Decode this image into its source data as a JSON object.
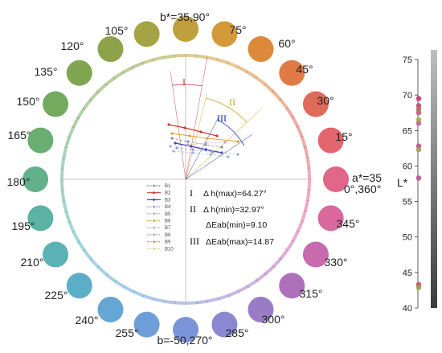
{
  "hue_labels": [
    {
      "text": "b*=35,90°",
      "angle": 90
    },
    {
      "text": "75°",
      "angle": 75
    },
    {
      "text": "60°",
      "angle": 60
    },
    {
      "text": "45°",
      "angle": 45
    },
    {
      "text": "30°",
      "angle": 30
    },
    {
      "text": "15°",
      "angle": 15
    },
    {
      "text": "a*=35",
      "angle": 0
    },
    {
      "text": "0°,360°",
      "angle": 0
    },
    {
      "text": "345°",
      "angle": 345
    },
    {
      "text": "330°",
      "angle": 330
    },
    {
      "text": "315°",
      "angle": 315
    },
    {
      "text": "300°",
      "angle": 300
    },
    {
      "text": "285°",
      "angle": 285
    },
    {
      "text": "b=-50,270°",
      "angle": 270
    },
    {
      "text": "255°",
      "angle": 255
    },
    {
      "text": "240°",
      "angle": 240
    },
    {
      "text": "225°",
      "angle": 225
    },
    {
      "text": "210°",
      "angle": 210
    },
    {
      "text": "195°",
      "angle": 195
    },
    {
      "text": "180°",
      "angle": 180
    },
    {
      "text": "165°",
      "angle": 165
    },
    {
      "text": "150°",
      "angle": 150
    },
    {
      "text": "135°",
      "angle": 135
    },
    {
      "text": "120°",
      "angle": 120
    },
    {
      "text": "105°",
      "angle": 105
    }
  ],
  "circle_colors": {
    "90": "#c0a03c",
    "75": "#d49a3a",
    "60": "#dc8a3a",
    "45": "#e07a45",
    "30": "#e06a5a",
    "15": "#e2656f",
    "0": "#e0668a",
    "345": "#d8689e",
    "330": "#c86aae",
    "315": "#ae70bb",
    "300": "#9a7cc6",
    "285": "#8a88d0",
    "270": "#7c94d8",
    "255": "#6e9ed8",
    "240": "#66a6d4",
    "225": "#5caec8",
    "210": "#5ab2b6",
    "195": "#5cb2a4",
    "180": "#62b08c",
    "165": "#6aae72",
    "150": "#74aa5e",
    "135": "#80a450",
    "120": "#8ea24a",
    "105": "#a4a444"
  },
  "legend": [
    {
      "label": "B1",
      "color": "#8a8aa8"
    },
    {
      "label": "B2",
      "color": "#c43a3a"
    },
    {
      "label": "B3",
      "color": "#3a46b8"
    },
    {
      "label": "B4",
      "color": "#9a9ad0"
    },
    {
      "label": "B5",
      "color": "#a0b0d8"
    },
    {
      "label": "B6",
      "color": "#e0a030"
    },
    {
      "label": "B7",
      "color": "#b0b0c8"
    },
    {
      "label": "B8",
      "color": "#c0a0c0"
    },
    {
      "label": "B9",
      "color": "#b0a080"
    },
    {
      "label": "B10",
      "color": "#e0d080"
    }
  ],
  "annotations": [
    {
      "roman": "I",
      "text": "Δ h(max)=64.27°"
    },
    {
      "roman": "II",
      "text": "Δ h(min)=32.97°"
    },
    {
      "roman": "",
      "text": "ΔEab(min)=9.10"
    },
    {
      "roman": "III",
      "text": "ΔEab(max)=14.87"
    }
  ],
  "sector_labels": [
    {
      "text": "I",
      "color": "#c03030"
    },
    {
      "text": "II",
      "color": "#d0a020"
    },
    {
      "text": "III",
      "color": "#2030b0"
    }
  ],
  "lightness_scale": {
    "axis_label": "L*",
    "ticks": [
      40,
      45,
      50,
      55,
      60,
      65,
      70,
      75
    ],
    "range": [
      40,
      75
    ],
    "samples": [
      {
        "L": 69.5,
        "color": "#c43a6a"
      },
      {
        "L": 68.5,
        "color": "#c04a80"
      },
      {
        "L": 68.0,
        "color": "#b07050"
      },
      {
        "L": 67.5,
        "color": "#c0607a"
      },
      {
        "L": 66.5,
        "color": "#a0b040"
      },
      {
        "L": 66.0,
        "color": "#c06a9a"
      },
      {
        "L": 62.8,
        "color": "#c0508a"
      },
      {
        "L": 62.3,
        "color": "#a0a050"
      },
      {
        "L": 58.3,
        "color": "#c05090"
      },
      {
        "L": 43.3,
        "color": "#c05070"
      },
      {
        "L": 42.9,
        "color": "#a0a040"
      }
    ]
  }
}
